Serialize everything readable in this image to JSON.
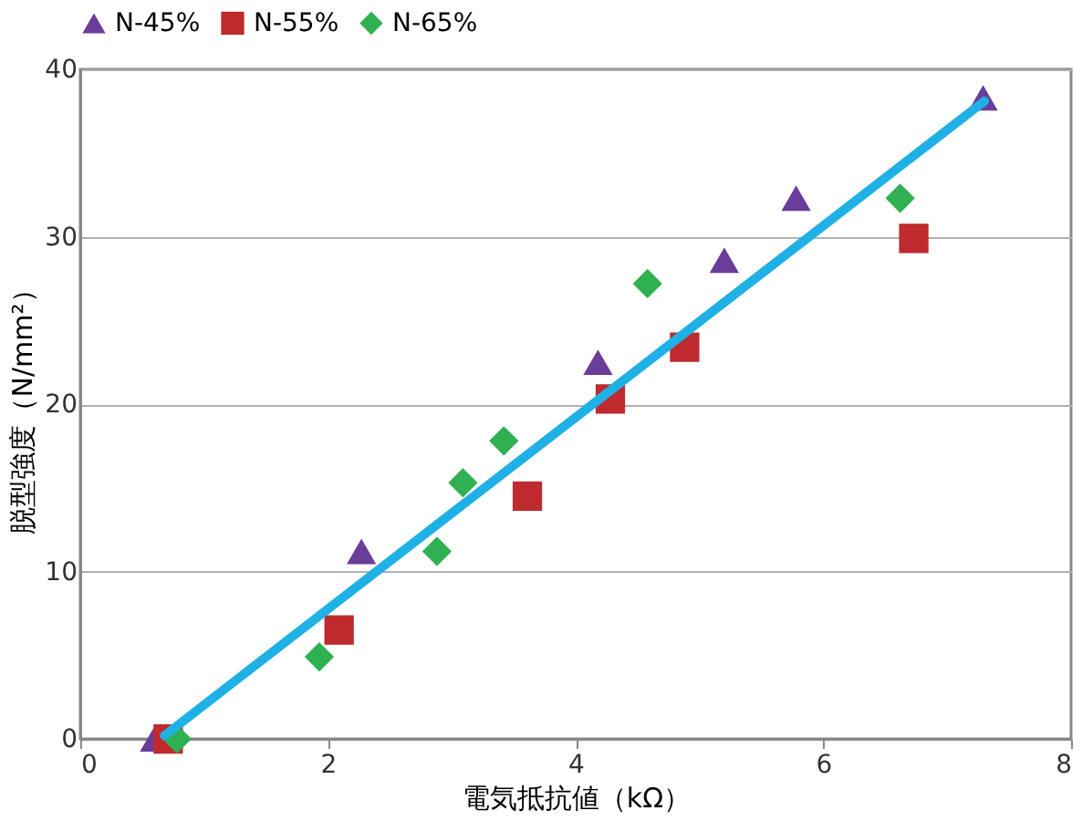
{
  "chart_data": {
    "type": "scatter",
    "xlabel": "電気抵抗値（kΩ）",
    "ylabel": "脱型強度（N/mm²）",
    "xlim": [
      0,
      8
    ],
    "xticks": [
      0,
      2,
      4,
      6,
      8
    ],
    "ylim": [
      0,
      40
    ],
    "yticks": [
      0,
      10,
      20,
      30,
      40
    ],
    "grid": "y",
    "legend": "top",
    "series": [
      {
        "name": "N-45%",
        "color": "#6a3d9a",
        "marker": "triangle",
        "x": [
          0.6,
          2.27,
          4.18,
          5.2,
          5.78,
          7.29
        ],
        "values": [
          0,
          11.2,
          22.5,
          28.6,
          32.3,
          38.3
        ]
      },
      {
        "name": "N-55%",
        "color": "#be2a2e",
        "marker": "square",
        "x": [
          0.71,
          2.09,
          3.61,
          4.28,
          4.88,
          6.73
        ],
        "values": [
          0,
          6.5,
          14.5,
          20.3,
          23.4,
          29.9
        ]
      },
      {
        "name": "N-65%",
        "color": "#2fb152",
        "marker": "diamond",
        "x": [
          0.78,
          1.93,
          2.88,
          3.09,
          3.42,
          4.58,
          6.62
        ],
        "values": [
          0,
          4.9,
          11.2,
          15.3,
          17.8,
          27.2,
          32.3
        ]
      },
      {
        "type": "line",
        "color": "#1fb1e6",
        "marker": "none",
        "line_style": "solid",
        "x": [
          0.68,
          7.3
        ],
        "values": [
          0.2,
          38.1
        ]
      }
    ]
  }
}
